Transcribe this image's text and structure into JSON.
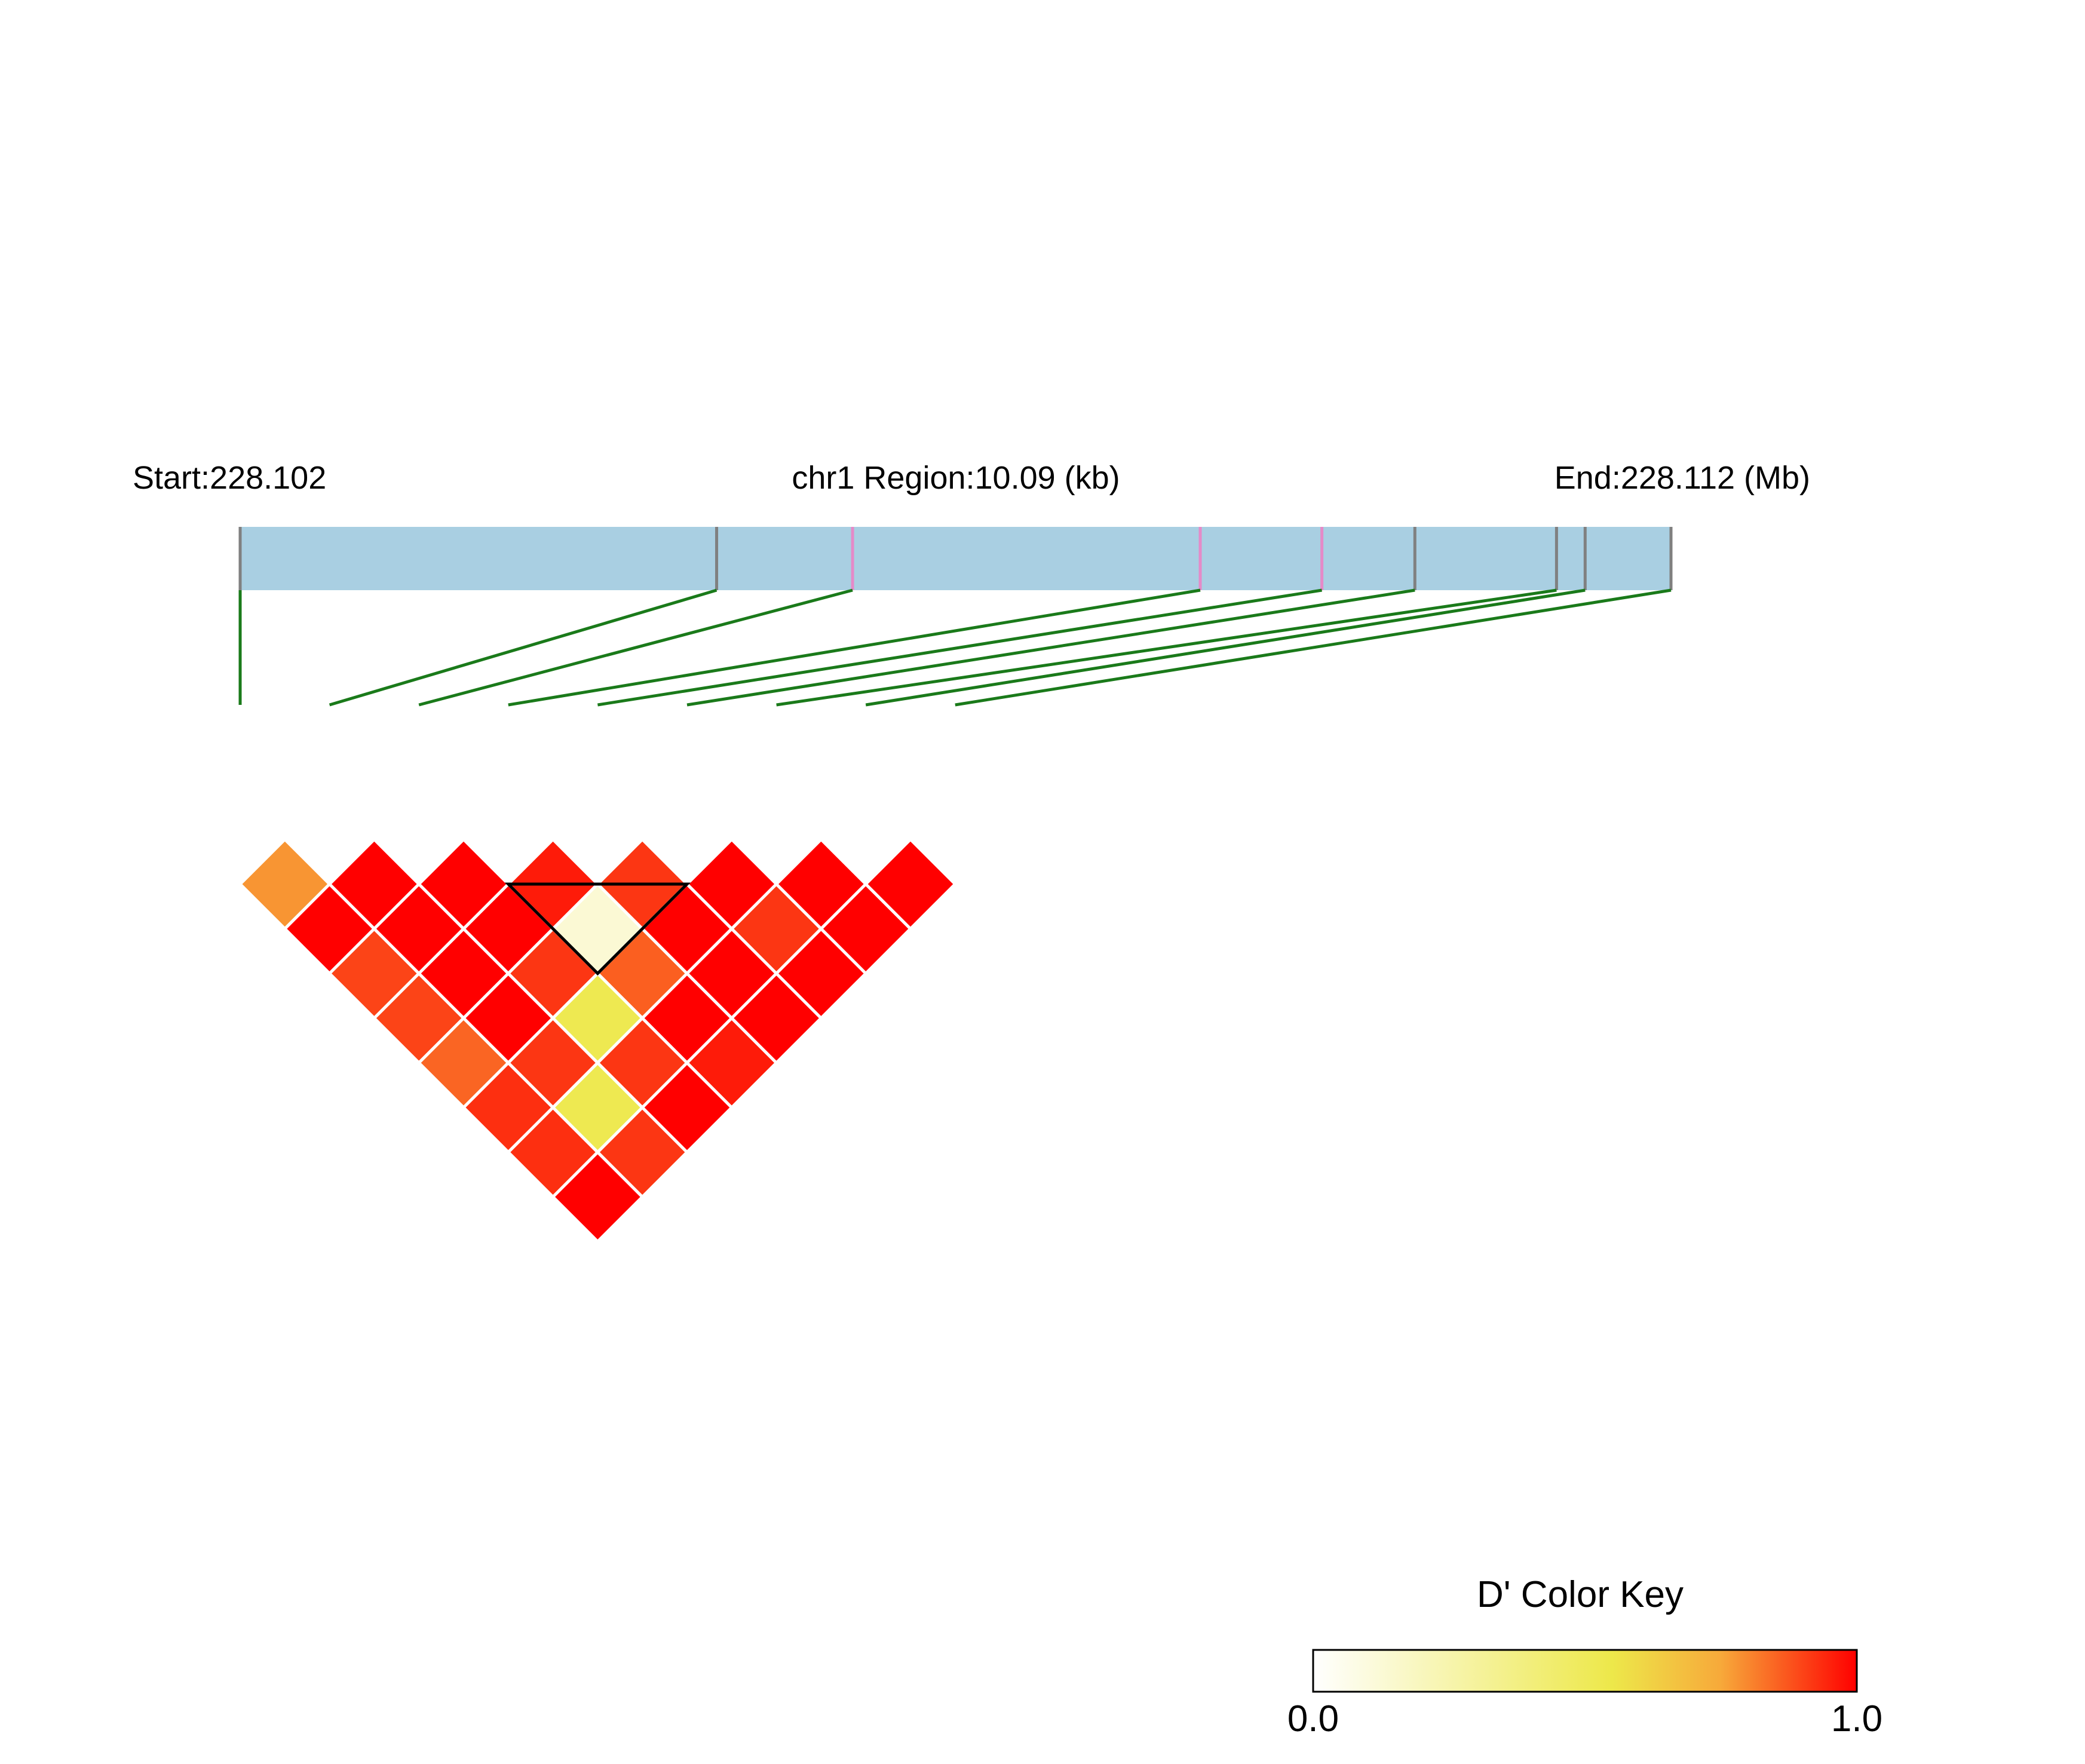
{
  "chart_data": {
    "type": "heatmap",
    "plot_kind": "LD heatmap",
    "chromosome": "chr1",
    "header": {
      "start_label": "Start:228.102",
      "region_label": "chr1 Region:10.09 (kb)",
      "end_label": "End:228.112 (Mb)"
    },
    "region": {
      "start_mb": 228.102,
      "end_mb": 228.112,
      "length_kb": 10.09
    },
    "snp_positions_fraction": [
      0.0,
      0.333,
      0.428,
      0.671,
      0.756,
      0.821,
      0.92,
      0.94,
      1.0
    ],
    "snp_marker_colors": [
      "#808080",
      "#808080",
      "#e58ac8",
      "#e58ac8",
      "#e58ac8",
      "#808080",
      "#808080",
      "#808080",
      "#808080"
    ],
    "snp_count": 9,
    "d_prime": [
      [
        null,
        0.78,
        1.0,
        0.9,
        0.9,
        0.85,
        0.93,
        0.93,
        1.0
      ],
      [
        0.78,
        null,
        1.0,
        1.0,
        1.0,
        1.0,
        0.92,
        0.48,
        0.92
      ],
      [
        1.0,
        1.0,
        null,
        1.0,
        1.0,
        0.92,
        0.48,
        0.92,
        1.0
      ],
      [
        0.9,
        1.0,
        1.0,
        null,
        0.96,
        0.12,
        0.86,
        1.0,
        0.96
      ],
      [
        0.9,
        1.0,
        1.0,
        0.96,
        null,
        0.92,
        1.0,
        1.0,
        1.0
      ],
      [
        0.85,
        1.0,
        0.92,
        0.12,
        0.92,
        null,
        1.0,
        0.92,
        1.0
      ],
      [
        0.93,
        0.92,
        0.48,
        0.86,
        1.0,
        1.0,
        null,
        1.0,
        1.0
      ],
      [
        0.93,
        0.48,
        0.92,
        1.0,
        1.0,
        0.92,
        1.0,
        null,
        1.0
      ],
      [
        1.0,
        0.92,
        1.0,
        0.96,
        1.0,
        1.0,
        1.0,
        1.0,
        null
      ]
    ],
    "ld_block": {
      "snps": [
        3,
        4,
        5
      ],
      "outline_color": "#000000"
    },
    "color_key": {
      "title": "D' Color Key",
      "min_label": "0.0",
      "max_label": "1.0",
      "range": [
        0.0,
        1.0
      ],
      "colors": [
        "#ffffff",
        "#ede84a",
        "#f7a93a",
        "#ff0000"
      ]
    },
    "colors": {
      "region_bar": "#a9cfe2",
      "connector_lines": "#1a7a1a",
      "cell_border": "#ffffff"
    }
  }
}
